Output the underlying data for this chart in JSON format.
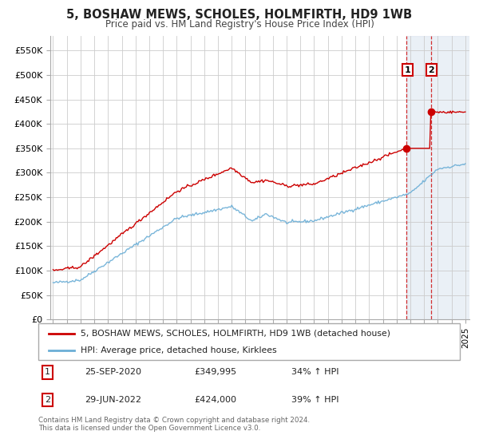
{
  "title": "5, BOSHAW MEWS, SCHOLES, HOLMFIRTH, HD9 1WB",
  "subtitle": "Price paid vs. HM Land Registry's House Price Index (HPI)",
  "legend_line1": "5, BOSHAW MEWS, SCHOLES, HOLMFIRTH, HD9 1WB (detached house)",
  "legend_line2": "HPI: Average price, detached house, Kirklees",
  "annotation1_date": "25-SEP-2020",
  "annotation1_price": "£349,995",
  "annotation1_hpi": "34% ↑ HPI",
  "annotation2_date": "29-JUN-2022",
  "annotation2_price": "£424,000",
  "annotation2_hpi": "39% ↑ HPI",
  "footer": "Contains HM Land Registry data © Crown copyright and database right 2024.\nThis data is licensed under the Open Government Licence v3.0.",
  "red_color": "#cc0000",
  "blue_color": "#6baed6",
  "shaded_color": "#dce6f1",
  "background_color": "#ffffff",
  "grid_color": "#cccccc",
  "sale1_x": 2020.73,
  "sale1_y": 349995,
  "sale2_x": 2022.49,
  "sale2_y": 424000,
  "shade_start": 2020.73,
  "shade_end": 2025.3,
  "xlim_start": 1994.8,
  "xlim_end": 2025.3,
  "ylim": [
    0,
    580000
  ],
  "yticks": [
    0,
    50000,
    100000,
    150000,
    200000,
    250000,
    300000,
    350000,
    400000,
    450000,
    500000,
    550000
  ],
  "ytick_labels": [
    "£0",
    "£50K",
    "£100K",
    "£150K",
    "£200K",
    "£250K",
    "£300K",
    "£350K",
    "£400K",
    "£450K",
    "£500K",
    "£550K"
  ]
}
